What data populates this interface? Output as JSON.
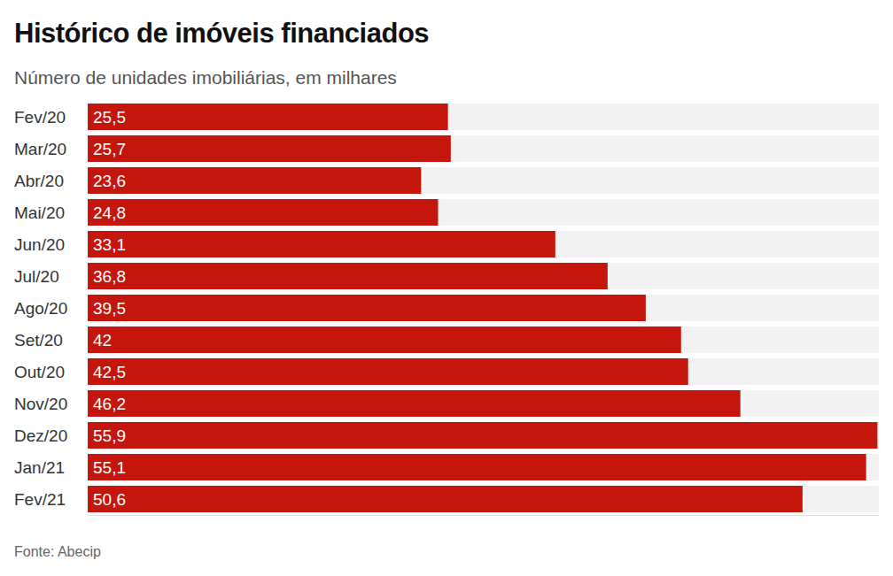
{
  "chart_data": {
    "type": "bar",
    "orientation": "horizontal",
    "title": "Histórico de imóveis financiados",
    "subtitle": "Número de unidades imobiliárias, em milhares",
    "source": "Fonte: Abecip",
    "categories": [
      "Fev/20",
      "Mar/20",
      "Abr/20",
      "Mai/20",
      "Jun/20",
      "Jul/20",
      "Ago/20",
      "Set/20",
      "Out/20",
      "Nov/20",
      "Dez/20",
      "Jan/21",
      "Fev/21"
    ],
    "values": [
      25.5,
      25.7,
      23.6,
      24.8,
      33.1,
      36.8,
      39.5,
      42,
      42.5,
      46.2,
      55.9,
      55.1,
      50.6
    ],
    "value_labels": [
      "25,5",
      "25,7",
      "23,6",
      "24,8",
      "33,1",
      "36,8",
      "39,5",
      "42",
      "42,5",
      "46,2",
      "55,9",
      "55,1",
      "50,6"
    ],
    "color": "#c4160d",
    "xlim": [
      0,
      56
    ],
    "xticks": [],
    "grid": false,
    "data_labels": true,
    "tick_labels": "y"
  }
}
